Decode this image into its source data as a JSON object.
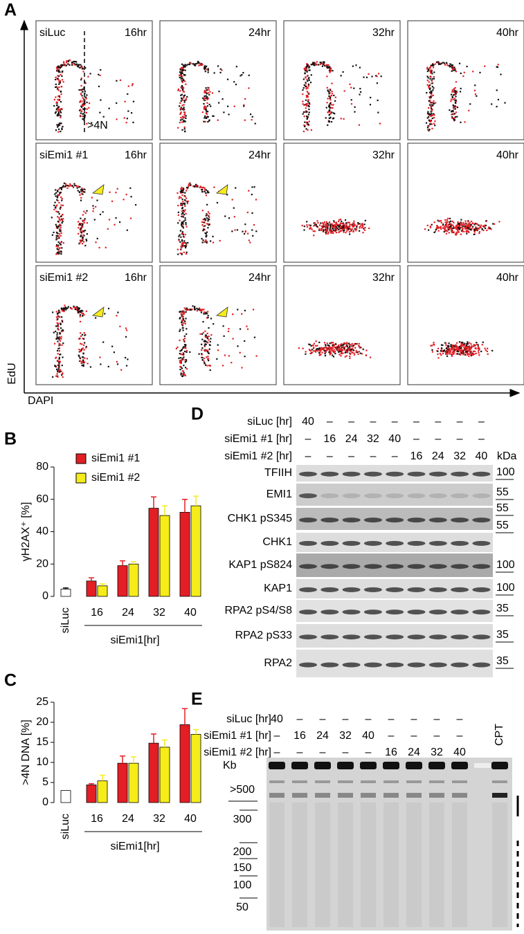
{
  "panel_a": {
    "label": "A",
    "y_label": "EdU",
    "x_label": "DAPI",
    "gate_label": ">4N",
    "rows": [
      {
        "name": "siLuc",
        "times": [
          "16hr",
          "24hr",
          "32hr",
          "40hr"
        ]
      },
      {
        "name": "siEmi1 #1",
        "times": [
          "16hr",
          "24hr",
          "32hr",
          "40hr"
        ]
      },
      {
        "name": "siEmi1 #2",
        "times": [
          "16hr",
          "24hr",
          "32hr",
          "40hr"
        ]
      }
    ]
  },
  "chart_data": [
    {
      "type": "bar",
      "panel": "B",
      "ylabel": "γH2AX⁺ [%]",
      "categories": [
        "siLuc",
        "16",
        "24",
        "32",
        "40"
      ],
      "group_label": "siEmi1[hr]",
      "control": {
        "color": "#ffffff",
        "values": [
          4.5,
          null,
          null,
          null,
          null
        ],
        "errors": [
          0.7,
          null,
          null,
          null,
          null
        ]
      },
      "series": [
        {
          "name": "siEmi1 #1",
          "color": "#e31e24",
          "values": [
            null,
            9.5,
            19,
            54.5,
            52
          ],
          "errors": [
            null,
            2,
            3,
            7,
            8
          ]
        },
        {
          "name": "siEmi1 #2",
          "color": "#f5ec1a",
          "values": [
            null,
            6.5,
            20,
            50,
            56
          ],
          "errors": [
            null,
            1.2,
            1.5,
            6,
            6
          ]
        }
      ],
      "ylim": [
        0,
        80
      ],
      "yticks": [
        0,
        20,
        40,
        60,
        80
      ],
      "legend": "top-left"
    },
    {
      "type": "bar",
      "panel": "C",
      "ylabel": ">4N DNA [%]",
      "categories": [
        "siLuc",
        "16",
        "24",
        "32",
        "40"
      ],
      "group_label": "siEmi1[hr]",
      "control": {
        "color": "#ffffff",
        "values": [
          3,
          null,
          null,
          null,
          null
        ],
        "errors": [
          null,
          null,
          null,
          null,
          null
        ]
      },
      "series": [
        {
          "color": "#e31e24",
          "values": [
            null,
            4.4,
            9.8,
            14.8,
            19.4
          ],
          "errors": [
            null,
            0.3,
            1.8,
            2.3,
            4
          ]
        },
        {
          "color": "#f5ec1a",
          "values": [
            null,
            5.4,
            9.8,
            13.8,
            17
          ],
          "errors": [
            null,
            1.4,
            1.6,
            1.8,
            1.2
          ]
        }
      ],
      "ylim": [
        0,
        25
      ],
      "yticks": [
        0,
        5,
        10,
        15,
        20,
        25
      ]
    }
  ],
  "panel_d": {
    "label": "D",
    "unit": "kDa",
    "lanes": [
      {
        "name": "siLuc [hr]",
        "values": [
          "40",
          "–",
          "–",
          "–",
          "–",
          "–",
          "–",
          "–",
          "–"
        ]
      },
      {
        "name": "siEmi1 #1 [hr]",
        "values": [
          "–",
          "16",
          "24",
          "32",
          "40",
          "–",
          "–",
          "–",
          "–"
        ]
      },
      {
        "name": "siEmi1 #2 [hr]",
        "values": [
          "–",
          "–",
          "–",
          "–",
          "–",
          "16",
          "24",
          "32",
          "40"
        ]
      }
    ],
    "blots": [
      {
        "name": "TFIIH",
        "markers": [
          "100"
        ]
      },
      {
        "name": "EMI1",
        "markers": [
          "55"
        ]
      },
      {
        "name": "CHK1 pS345",
        "markers": [
          "55",
          "55"
        ]
      },
      {
        "name": "CHK1",
        "markers": []
      },
      {
        "name": "KAP1 pS824",
        "markers": [
          "100"
        ]
      },
      {
        "name": "KAP1",
        "markers": [
          "100"
        ]
      },
      {
        "name": "RPA2 pS4/S8",
        "markers": [
          "35"
        ]
      },
      {
        "name": "RPA2 pS33",
        "markers": [
          "35"
        ]
      },
      {
        "name": "RPA2",
        "markers": [
          "35"
        ]
      }
    ]
  },
  "panel_e": {
    "label": "E",
    "extra_lane": "CPT",
    "unit": "Kb",
    "lanes": [
      {
        "name": "siLuc [hr]",
        "values": [
          "40",
          "–",
          "–",
          "–",
          "–",
          "–",
          "–",
          "–",
          "–"
        ]
      },
      {
        "name": "siEmi1 #1 [hr]",
        "values": [
          "–",
          "16",
          "24",
          "32",
          "40",
          "–",
          "–",
          "–",
          "–"
        ]
      },
      {
        "name": "siEmi1 #2 [hr]",
        "values": [
          "–",
          "–",
          "–",
          "–",
          "–",
          "16",
          "24",
          "32",
          "40"
        ]
      }
    ],
    "sizes": [
      ">500",
      "300",
      "200",
      "150",
      "100",
      "50"
    ]
  }
}
